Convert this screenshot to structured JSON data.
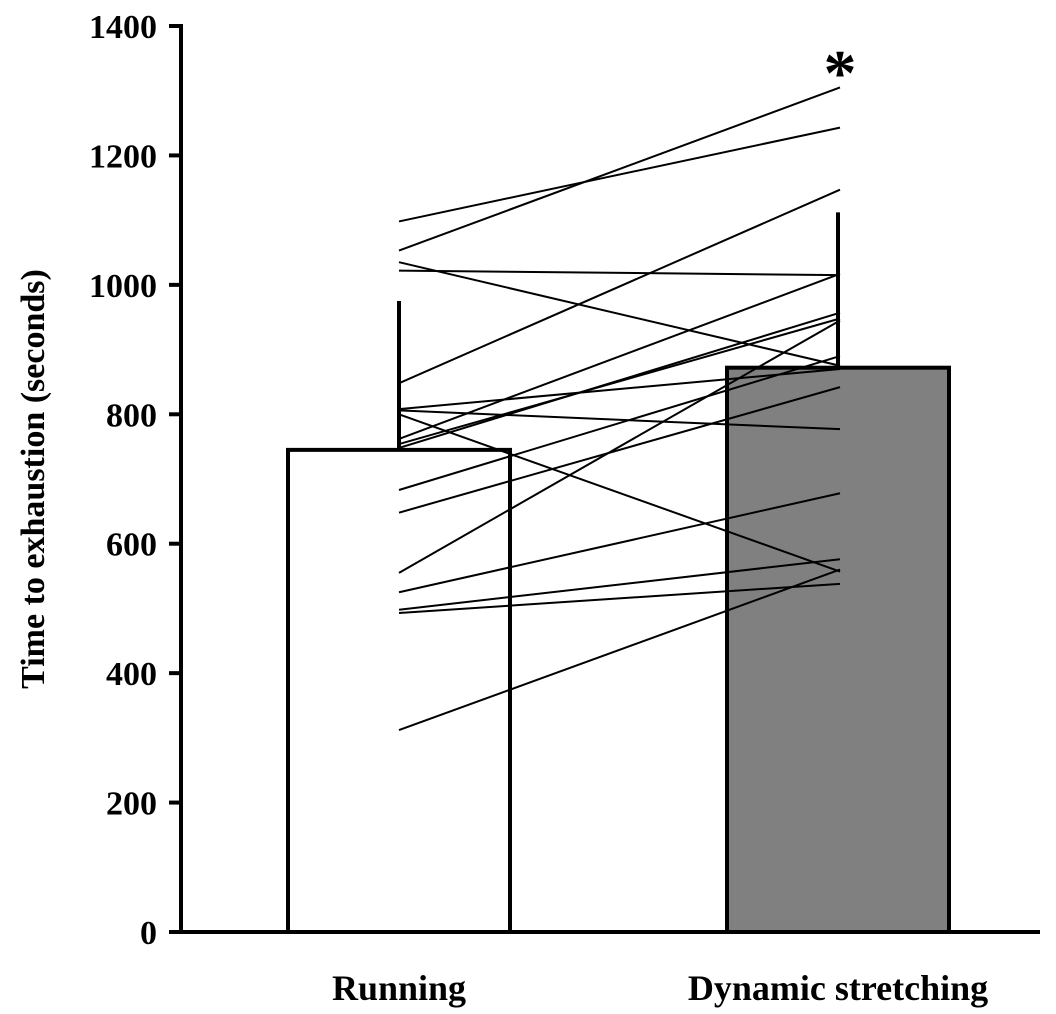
{
  "chart_data": {
    "type": "bar",
    "categories": [
      "Running",
      "Dynamic stretching"
    ],
    "values": [
      745,
      872
    ],
    "error_upper": [
      975,
      1112
    ],
    "bar_colors": [
      "#ffffff",
      "#808080"
    ],
    "ylabel": "Time to exhaustion (seconds)",
    "xlabel": "",
    "ylim": [
      0,
      1400
    ],
    "yticks": [
      0,
      200,
      400,
      600,
      800,
      1000,
      1200,
      1400
    ],
    "grid": false,
    "legend": "none",
    "annotations": [
      {
        "text": "*",
        "category": "Dynamic stretching"
      }
    ],
    "individual_pairs": [
      [
        1098,
        1243
      ],
      [
        1053,
        1305
      ],
      [
        1035,
        875
      ],
      [
        1022,
        1015
      ],
      [
        848,
        1147
      ],
      [
        808,
        870
      ],
      [
        806,
        777
      ],
      [
        800,
        557
      ],
      [
        762,
        1017
      ],
      [
        754,
        948
      ],
      [
        748,
        957
      ],
      [
        683,
        890
      ],
      [
        648,
        842
      ],
      [
        555,
        945
      ],
      [
        525,
        678
      ],
      [
        498,
        576
      ],
      [
        493,
        538
      ],
      [
        312,
        560
      ]
    ]
  }
}
